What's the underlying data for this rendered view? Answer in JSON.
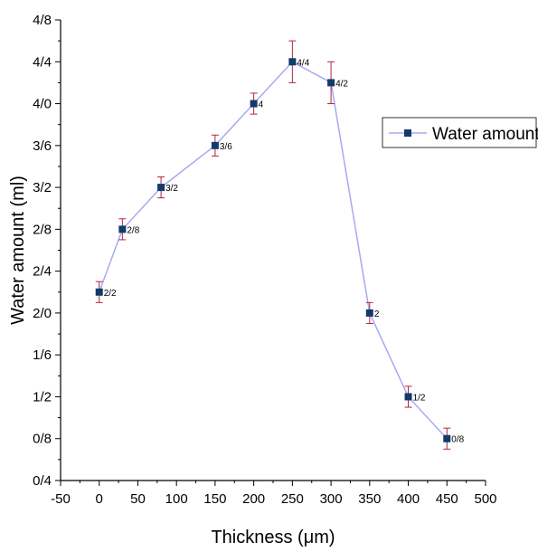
{
  "chart_data": {
    "type": "line",
    "title": "",
    "xlabel": "Thickness (μm)",
    "ylabel": "Water amount (ml)",
    "xlim": [
      -50,
      500
    ],
    "ylim": [
      0.4,
      4.8
    ],
    "x_ticks": [
      -50,
      0,
      50,
      100,
      150,
      200,
      250,
      300,
      350,
      400,
      450,
      500
    ],
    "y_ticks": [
      0.4,
      0.8,
      1.2,
      1.6,
      2.0,
      2.4,
      2.8,
      3.2,
      3.6,
      4.0,
      4.4,
      4.8
    ],
    "y_tick_labels": [
      "0/4",
      "0/8",
      "1/2",
      "1/6",
      "2/0",
      "2/4",
      "2/8",
      "3/2",
      "3/6",
      "4/0",
      "4/4",
      "4/8"
    ],
    "grid": false,
    "legend_position": "right",
    "colors": {
      "line": "#a9a9f2",
      "marker": "#123a6b",
      "error": "#b0263a"
    },
    "series": [
      {
        "name": "Water amount",
        "x": [
          0,
          30,
          80,
          150,
          200,
          250,
          300,
          350,
          400,
          450
        ],
        "y": [
          2.2,
          2.8,
          3.2,
          3.6,
          4.0,
          4.4,
          4.2,
          2.0,
          1.2,
          0.8
        ],
        "error": [
          0.1,
          0.1,
          0.1,
          0.1,
          0.1,
          0.2,
          0.2,
          0.1,
          0.1,
          0.1
        ],
        "labels": [
          "2/2",
          "2/8",
          "3/2",
          "3/6",
          "4",
          "4/4",
          "4/2",
          "2",
          "1/2",
          "0/8"
        ]
      }
    ]
  }
}
